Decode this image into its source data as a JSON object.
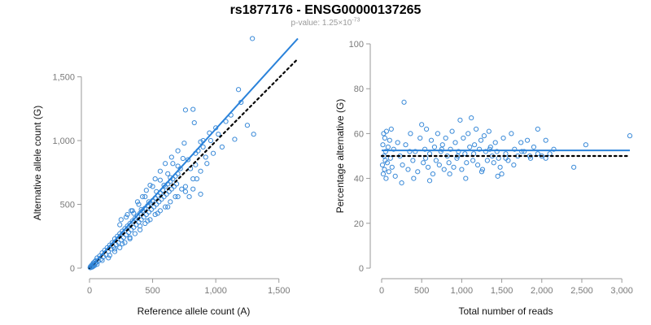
{
  "header": {
    "title": "rs1877176 - ENSG00000137265",
    "pvalue_prefix": "p-value: 1.25×10",
    "pvalue_exponent": "-73"
  },
  "colors": {
    "points": "#3a8ad8",
    "fit_line": "#2a82da",
    "reference_line": "#000000",
    "axis": "#999999"
  },
  "chart_data": [
    {
      "type": "scatter",
      "title": "",
      "xlabel": "Reference allele count (A)",
      "ylabel": "Alternative allele count (G)",
      "xlim": [
        0,
        1650
      ],
      "ylim": [
        0,
        1650
      ],
      "xticks": [
        0,
        500,
        1000,
        1500
      ],
      "xtick_labels": [
        "0",
        "500",
        "1,000",
        "1,500"
      ],
      "yticks": [
        0,
        500,
        1000,
        1500
      ],
      "ytick_labels": [
        "0",
        "500",
        "1,000",
        "1,500"
      ],
      "grid": false,
      "fit_line": {
        "x": [
          0,
          1650
        ],
        "y": [
          0,
          1800
        ],
        "style": "solid"
      },
      "reference_line": {
        "x": [
          0,
          1810
        ],
        "y": [
          0,
          1800
        ],
        "style": "dotted"
      },
      "points": [
        [
          5,
          5
        ],
        [
          8,
          12
        ],
        [
          12,
          6
        ],
        [
          15,
          20
        ],
        [
          18,
          10
        ],
        [
          20,
          25
        ],
        [
          22,
          15
        ],
        [
          25,
          30
        ],
        [
          28,
          18
        ],
        [
          30,
          40
        ],
        [
          35,
          25
        ],
        [
          40,
          50
        ],
        [
          45,
          35
        ],
        [
          50,
          60
        ],
        [
          55,
          45
        ],
        [
          60,
          80
        ],
        [
          70,
          55
        ],
        [
          80,
          95
        ],
        [
          90,
          70
        ],
        [
          100,
          120
        ],
        [
          110,
          90
        ],
        [
          120,
          140
        ],
        [
          130,
          105
        ],
        [
          140,
          160
        ],
        [
          150,
          130
        ],
        [
          160,
          180
        ],
        [
          170,
          150
        ],
        [
          180,
          200
        ],
        [
          190,
          165
        ],
        [
          200,
          230
        ],
        [
          210,
          185
        ],
        [
          220,
          250
        ],
        [
          230,
          200
        ],
        [
          240,
          270
        ],
        [
          250,
          220
        ],
        [
          260,
          290
        ],
        [
          270,
          240
        ],
        [
          280,
          310
        ],
        [
          290,
          260
        ],
        [
          300,
          330
        ],
        [
          310,
          280
        ],
        [
          320,
          350
        ],
        [
          330,
          300
        ],
        [
          340,
          370
        ],
        [
          350,
          320
        ],
        [
          360,
          390
        ],
        [
          370,
          340
        ],
        [
          380,
          410
        ],
        [
          390,
          360
        ],
        [
          400,
          430
        ],
        [
          410,
          380
        ],
        [
          420,
          450
        ],
        [
          430,
          400
        ],
        [
          440,
          470
        ],
        [
          450,
          420
        ],
        [
          460,
          490
        ],
        [
          470,
          440
        ],
        [
          480,
          510
        ],
        [
          490,
          460
        ],
        [
          500,
          530
        ],
        [
          510,
          480
        ],
        [
          520,
          550
        ],
        [
          530,
          500
        ],
        [
          540,
          570
        ],
        [
          550,
          520
        ],
        [
          560,
          590
        ],
        [
          570,
          540
        ],
        [
          580,
          610
        ],
        [
          590,
          560
        ],
        [
          600,
          640
        ],
        [
          610,
          580
        ],
        [
          620,
          660
        ],
        [
          630,
          600
        ],
        [
          640,
          680
        ],
        [
          650,
          620
        ],
        [
          660,
          700
        ],
        [
          670,
          640
        ],
        [
          680,
          720
        ],
        [
          690,
          660
        ],
        [
          700,
          740
        ],
        [
          250,
          380
        ],
        [
          300,
          420
        ],
        [
          330,
          450
        ],
        [
          380,
          520
        ],
        [
          420,
          560
        ],
        [
          450,
          610
        ],
        [
          480,
          650
        ],
        [
          520,
          700
        ],
        [
          560,
          760
        ],
        [
          600,
          820
        ],
        [
          650,
          870
        ],
        [
          700,
          920
        ],
        [
          750,
          980
        ],
        [
          760,
          1240
        ],
        [
          820,
          1245
        ],
        [
          830,
          1140
        ],
        [
          880,
          990
        ],
        [
          900,
          1000
        ],
        [
          950,
          1060
        ],
        [
          1000,
          1100
        ],
        [
          150,
          80
        ],
        [
          200,
          150
        ],
        [
          260,
          190
        ],
        [
          320,
          240
        ],
        [
          400,
          330
        ],
        [
          460,
          370
        ],
        [
          540,
          430
        ],
        [
          620,
          480
        ],
        [
          700,
          560
        ],
        [
          760,
          640
        ],
        [
          820,
          700
        ],
        [
          880,
          760
        ],
        [
          930,
          820
        ],
        [
          980,
          900
        ],
        [
          1050,
          950
        ],
        [
          1150,
          1010
        ],
        [
          1250,
          1120
        ],
        [
          1300,
          1050
        ],
        [
          1180,
          1400
        ],
        [
          1290,
          1800
        ],
        [
          350,
          430
        ],
        [
          410,
          460
        ],
        [
          470,
          520
        ],
        [
          530,
          600
        ],
        [
          590,
          650
        ],
        [
          640,
          710
        ],
        [
          720,
          780
        ],
        [
          780,
          850
        ],
        [
          840,
          900
        ],
        [
          620,
          740
        ],
        [
          660,
          820
        ],
        [
          700,
          800
        ],
        [
          740,
          860
        ],
        [
          560,
          690
        ],
        [
          500,
          640
        ],
        [
          440,
          560
        ],
        [
          390,
          500
        ],
        [
          340,
          450
        ],
        [
          290,
          400
        ],
        [
          240,
          340
        ],
        [
          820,
          620
        ],
        [
          850,
          700
        ],
        [
          880,
          580
        ],
        [
          790,
          560
        ],
        [
          760,
          600
        ],
        [
          730,
          620
        ],
        [
          680,
          560
        ],
        [
          640,
          520
        ],
        [
          600,
          480
        ],
        [
          560,
          450
        ],
        [
          520,
          420
        ],
        [
          480,
          380
        ],
        [
          440,
          350
        ],
        [
          400,
          300
        ],
        [
          360,
          270
        ],
        [
          320,
          230
        ],
        [
          280,
          200
        ],
        [
          240,
          160
        ],
        [
          200,
          130
        ],
        [
          160,
          100
        ],
        [
          100,
          60
        ],
        [
          60,
          30
        ],
        [
          40,
          20
        ],
        [
          30,
          15
        ],
        [
          25,
          10
        ],
        [
          20,
          8
        ],
        [
          15,
          12
        ],
        [
          10,
          5
        ],
        [
          8,
          8
        ],
        [
          6,
          4
        ],
        [
          1200,
          1300
        ],
        [
          1120,
          1200
        ],
        [
          1080,
          1150
        ],
        [
          1020,
          1050
        ],
        [
          960,
          1000
        ],
        [
          900,
          950
        ],
        [
          860,
          920
        ],
        [
          920,
          870
        ],
        [
          840,
          810
        ],
        [
          800,
          780
        ]
      ]
    },
    {
      "type": "scatter",
      "title": "",
      "xlabel": "Total number of reads",
      "ylabel": "Percentage alternative (G)",
      "xlim": [
        0,
        3100
      ],
      "ylim": [
        0,
        100
      ],
      "xticks": [
        0,
        500,
        1000,
        1500,
        2000,
        2500,
        3000
      ],
      "xtick_labels": [
        "0",
        "500",
        "1,000",
        "1,500",
        "2,000",
        "2,500",
        "3,000"
      ],
      "yticks": [
        0,
        20,
        40,
        60,
        80,
        100
      ],
      "ytick_labels": [
        "0",
        "20",
        "40",
        "60",
        "80",
        "100"
      ],
      "grid": false,
      "fit_line": {
        "x": [
          0,
          3100
        ],
        "y": [
          52.5,
          52.5
        ],
        "style": "solid"
      },
      "reference_line": {
        "x": [
          0,
          3100
        ],
        "y": [
          50,
          50
        ],
        "style": "dotted"
      },
      "points": [
        [
          10,
          46
        ],
        [
          15,
          55
        ],
        [
          20,
          42
        ],
        [
          25,
          60
        ],
        [
          30,
          50
        ],
        [
          35,
          44
        ],
        [
          40,
          58
        ],
        [
          45,
          48
        ],
        [
          50,
          52
        ],
        [
          55,
          40
        ],
        [
          60,
          61
        ],
        [
          70,
          47
        ],
        [
          80,
          54
        ],
        [
          90,
          43
        ],
        [
          100,
          57
        ],
        [
          110,
          49
        ],
        [
          120,
          62
        ],
        [
          130,
          45
        ],
        [
          150,
          53
        ],
        [
          170,
          41
        ],
        [
          200,
          56
        ],
        [
          230,
          50
        ],
        [
          260,
          46
        ],
        [
          280,
          74
        ],
        [
          300,
          55
        ],
        [
          330,
          44
        ],
        [
          360,
          60
        ],
        [
          390,
          48
        ],
        [
          420,
          52
        ],
        [
          450,
          43
        ],
        [
          480,
          58
        ],
        [
          500,
          64
        ],
        [
          520,
          47
        ],
        [
          540,
          53
        ],
        [
          560,
          62
        ],
        [
          580,
          45
        ],
        [
          600,
          51
        ],
        [
          620,
          57
        ],
        [
          640,
          42
        ],
        [
          660,
          54
        ],
        [
          680,
          48
        ],
        [
          700,
          60
        ],
        [
          720,
          46
        ],
        [
          740,
          52
        ],
        [
          760,
          55
        ],
        [
          780,
          44
        ],
        [
          800,
          58
        ],
        [
          820,
          50
        ],
        [
          840,
          47
        ],
        [
          860,
          53
        ],
        [
          880,
          61
        ],
        [
          900,
          45
        ],
        [
          920,
          56
        ],
        [
          940,
          49
        ],
        [
          960,
          52
        ],
        [
          980,
          66
        ],
        [
          1000,
          44
        ],
        [
          1020,
          58
        ],
        [
          1040,
          51
        ],
        [
          1060,
          47
        ],
        [
          1080,
          60
        ],
        [
          1100,
          54
        ],
        [
          1120,
          67
        ],
        [
          1140,
          48
        ],
        [
          1160,
          55
        ],
        [
          1180,
          62
        ],
        [
          1200,
          46
        ],
        [
          1220,
          53
        ],
        [
          1240,
          57
        ],
        [
          1260,
          44
        ],
        [
          1280,
          59
        ],
        [
          1300,
          52
        ],
        [
          1320,
          48
        ],
        [
          1340,
          61
        ],
        [
          1360,
          54
        ],
        [
          1380,
          50
        ],
        [
          1400,
          47
        ],
        [
          1420,
          56
        ],
        [
          1440,
          52
        ],
        [
          1460,
          49
        ],
        [
          1480,
          45
        ],
        [
          1500,
          42
        ],
        [
          1520,
          58
        ],
        [
          1550,
          51
        ],
        [
          1580,
          48
        ],
        [
          1620,
          60
        ],
        [
          1660,
          53
        ],
        [
          1700,
          50
        ],
        [
          1740,
          56
        ],
        [
          1780,
          52
        ],
        [
          1820,
          57
        ],
        [
          1860,
          49
        ],
        [
          1900,
          54
        ],
        [
          1950,
          62
        ],
        [
          2000,
          50
        ],
        [
          2050,
          57
        ],
        [
          2100,
          51
        ],
        [
          2400,
          45
        ],
        [
          2550,
          55
        ],
        [
          3100,
          59
        ],
        [
          250,
          38
        ],
        [
          400,
          40
        ],
        [
          600,
          39
        ],
        [
          850,
          42
        ],
        [
          1050,
          40
        ],
        [
          1250,
          43
        ],
        [
          1450,
          41
        ],
        [
          1650,
          46
        ],
        [
          1850,
          50
        ],
        [
          2050,
          49
        ],
        [
          350,
          52
        ],
        [
          550,
          49
        ],
        [
          750,
          53
        ],
        [
          950,
          50
        ],
        [
          1150,
          51
        ],
        [
          1350,
          53
        ],
        [
          1550,
          49
        ],
        [
          1750,
          52
        ],
        [
          1950,
          51
        ],
        [
          2150,
          53
        ]
      ]
    }
  ]
}
